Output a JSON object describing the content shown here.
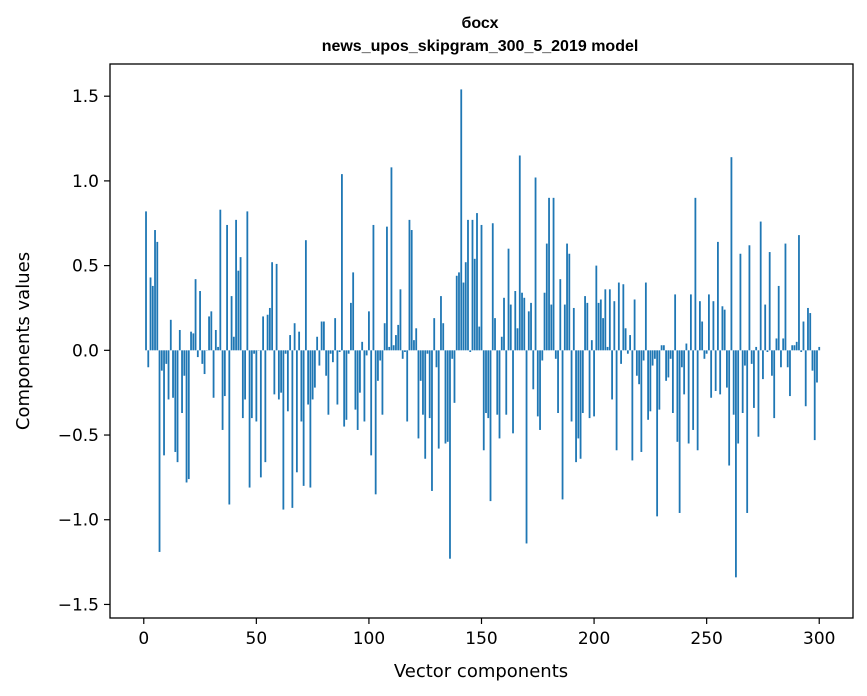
{
  "chart_data": {
    "type": "bar",
    "title": "босх",
    "subtitle": "news_upos_skipgram_300_5_2019 model",
    "xlabel": "Vector components",
    "ylabel": "Components values",
    "xlim": [
      -15,
      315
    ],
    "ylim": [
      -1.58,
      1.69
    ],
    "xticks": [
      0,
      50,
      100,
      150,
      200,
      250,
      300
    ],
    "yticks": [
      -1.5,
      -1.0,
      -0.5,
      0.0,
      0.5,
      1.0,
      1.5
    ],
    "ytick_labels": [
      "−1.5",
      "−1.0",
      "−0.5",
      "0.0",
      "0.5",
      "1.0",
      "1.5"
    ],
    "bar_color": "#1f77b4",
    "grid": false,
    "x_start": 1,
    "values": [
      0.82,
      -0.1,
      0.43,
      0.38,
      0.71,
      0.64,
      -1.19,
      -0.12,
      -0.62,
      -0.08,
      -0.29,
      0.18,
      -0.28,
      -0.6,
      -0.66,
      0.12,
      -0.37,
      -0.15,
      -0.78,
      -0.76,
      0.11,
      0.1,
      0.42,
      -0.04,
      0.35,
      -0.08,
      -0.14,
      0.0,
      0.2,
      0.23,
      -0.28,
      0.12,
      0.02,
      0.83,
      -0.47,
      -0.27,
      0.74,
      -0.91,
      0.32,
      0.08,
      0.77,
      0.47,
      0.55,
      -0.4,
      -0.29,
      0.82,
      -0.81,
      -0.4,
      -0.02,
      -0.42,
      0.0,
      -0.75,
      0.2,
      -0.66,
      0.21,
      0.25,
      0.52,
      -0.26,
      0.51,
      -0.29,
      -0.25,
      -0.94,
      -0.02,
      -0.36,
      0.09,
      -0.93,
      0.16,
      -0.72,
      0.11,
      -0.42,
      -0.8,
      0.65,
      -0.32,
      -0.81,
      -0.29,
      -0.22,
      0.08,
      -0.09,
      0.17,
      0.17,
      -0.15,
      -0.38,
      -0.02,
      -0.07,
      0.19,
      -0.32,
      -0.01,
      1.04,
      -0.45,
      -0.41,
      -0.02,
      0.28,
      0.46,
      -0.35,
      -0.47,
      -0.25,
      0.05,
      -0.42,
      -0.03,
      0.23,
      -0.62,
      0.74,
      -0.85,
      -0.18,
      -0.06,
      -0.38,
      0.16,
      0.73,
      0.02,
      1.08,
      0.03,
      0.09,
      0.15,
      0.36,
      -0.05,
      -0.01,
      -0.42,
      0.77,
      0.71,
      0.06,
      0.13,
      -0.52,
      -0.18,
      -0.38,
      -0.64,
      -0.02,
      -0.4,
      -0.83,
      0.19,
      -0.1,
      -0.58,
      0.32,
      0.16,
      -0.55,
      -0.54,
      -1.23,
      -0.05,
      -0.31,
      0.44,
      0.46,
      1.54,
      0.4,
      0.52,
      0.77,
      -0.01,
      0.77,
      0.54,
      0.81,
      0.14,
      0.74,
      -0.59,
      -0.37,
      -0.4,
      -0.89,
      0.75,
      0.19,
      -0.38,
      -0.52,
      0.08,
      0.31,
      -0.38,
      0.6,
      0.27,
      -0.49,
      0.35,
      0.13,
      1.15,
      0.34,
      0.31,
      -1.14,
      0.23,
      0.28,
      -0.23,
      1.02,
      -0.39,
      -0.47,
      -0.06,
      0.34,
      0.63,
      0.9,
      0.27,
      0.9,
      -0.05,
      -0.37,
      0.42,
      -0.88,
      0.27,
      0.63,
      0.57,
      -0.42,
      0.25,
      -0.66,
      -0.52,
      -0.64,
      -0.37,
      0.32,
      0.28,
      -0.4,
      0.06,
      -0.39,
      0.5,
      0.28,
      0.3,
      0.19,
      0.36,
      0.02,
      0.36,
      -0.29,
      0.29,
      -0.59,
      0.4,
      -0.08,
      0.39,
      0.13,
      -0.02,
      0.09,
      -0.65,
      0.3,
      -0.15,
      -0.2,
      -0.6,
      -0.06,
      0.4,
      -0.41,
      -0.36,
      -0.09,
      -0.05,
      -0.98,
      -0.35,
      0.03,
      0.03,
      -0.18,
      -0.16,
      -0.05,
      -0.37,
      0.33,
      -0.54,
      -0.96,
      -0.1,
      -0.26,
      0.04,
      -0.55,
      0.33,
      -0.47,
      0.9,
      -0.59,
      0.29,
      0.17,
      -0.05,
      -0.02,
      0.33,
      -0.28,
      0.29,
      -0.24,
      0.64,
      -0.26,
      0.26,
      0.24,
      -0.22,
      -0.68,
      1.14,
      -0.38,
      -1.34,
      -0.55,
      0.57,
      -0.37,
      -0.09,
      -0.96,
      0.62,
      -0.08,
      -0.34,
      0.02,
      -0.51,
      0.76,
      -0.17,
      0.27,
      -0.01,
      0.58,
      -0.15,
      -0.4,
      0.07,
      0.38,
      -0.1,
      0.07,
      0.63,
      -0.1,
      -0.27,
      0.03,
      0.03,
      0.05,
      0.68,
      -0.01,
      0.17,
      -0.33,
      0.25,
      0.22,
      -0.12,
      -0.53,
      -0.19,
      0.02
    ]
  }
}
